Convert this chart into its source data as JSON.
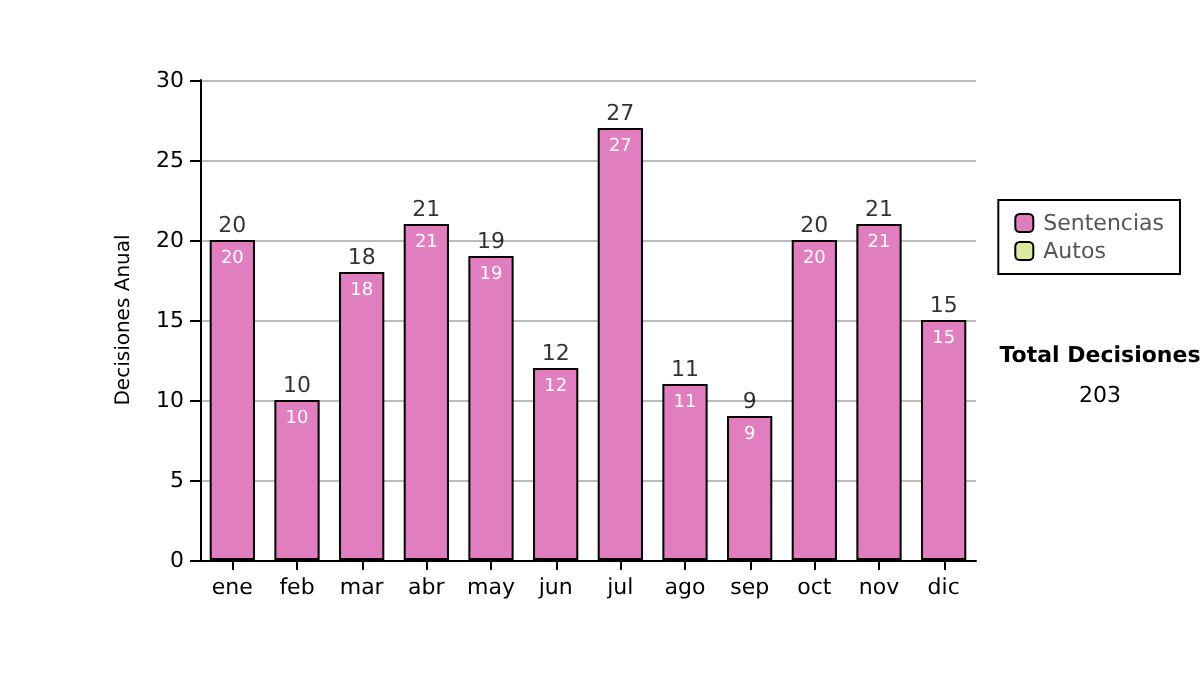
{
  "chart_data": {
    "type": "bar",
    "ylabel": "Decisiones Anual",
    "categories": [
      "ene",
      "feb",
      "mar",
      "abr",
      "may",
      "jun",
      "jul",
      "ago",
      "sep",
      "oct",
      "nov",
      "dic"
    ],
    "series": [
      {
        "name": "Sentencias",
        "color": "#e07ec0",
        "values": [
          20,
          10,
          18,
          21,
          19,
          12,
          27,
          11,
          9,
          20,
          21,
          15
        ]
      },
      {
        "name": "Autos",
        "color": "#d8eca0",
        "values": [
          null,
          null,
          null,
          null,
          null,
          null,
          null,
          null,
          null,
          null,
          null,
          null
        ]
      }
    ],
    "stacked": true,
    "data_labels": true,
    "totals": [
      "20",
      "10",
      "18",
      "21",
      "19",
      "12",
      "27",
      "11",
      "9",
      "20",
      "21",
      "15"
    ],
    "ylim": [
      0,
      30
    ],
    "yticks": [
      0,
      5,
      10,
      15,
      20,
      25,
      30
    ],
    "grid": "y",
    "legend": "right",
    "annotations": [
      "Total Decisiones",
      "203"
    ]
  }
}
